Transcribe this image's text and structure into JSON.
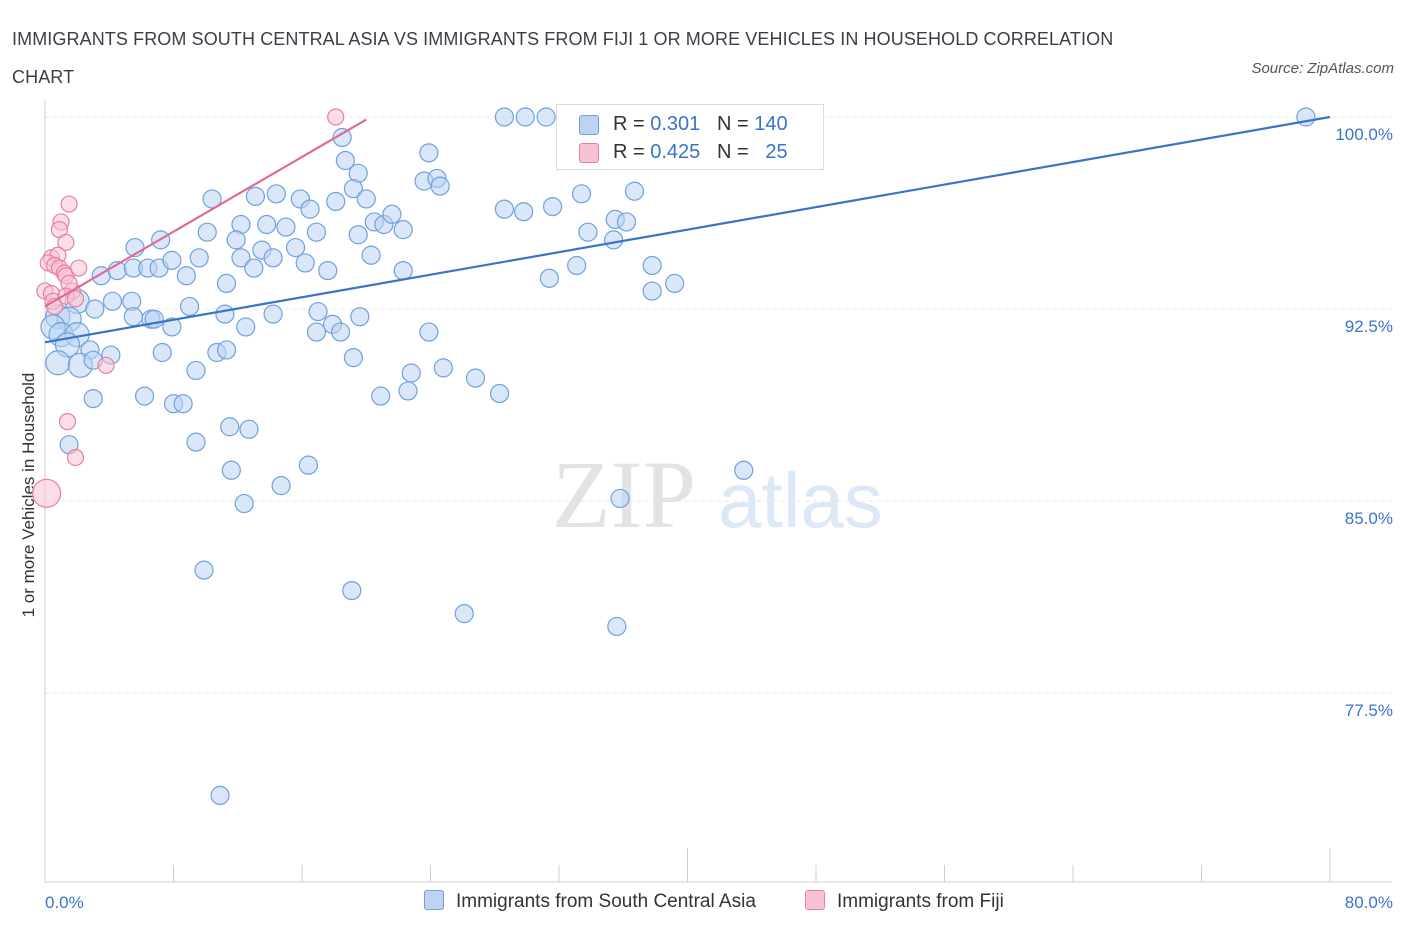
{
  "title": "IMMIGRANTS FROM SOUTH CENTRAL ASIA VS IMMIGRANTS FROM FIJI 1 OR MORE VEHICLES IN HOUSEHOLD CORRELATION CHART",
  "source": "Source: ZipAtlas.com",
  "watermark": {
    "zip": "ZIP",
    "atlas": "atlas"
  },
  "legend": {
    "r_label": "R =",
    "n_label": "N =",
    "series": [
      {
        "name": "Immigrants from South Central Asia",
        "r": "0.301",
        "n": "140",
        "color": "#6fa0e0",
        "fill": "#bcd3f3"
      },
      {
        "name": "Immigrants from Fiji",
        "r": "0.425",
        "n": "25",
        "color": "#e87fa1",
        "fill": "#f7c3d3"
      }
    ]
  },
  "chart_data": {
    "type": "scatter",
    "title": "IMMIGRANTS FROM SOUTH CENTRAL ASIA VS IMMIGRANTS FROM FIJI 1 OR MORE VEHICLES IN HOUSEHOLD CORRELATION CHART",
    "xlabel": "",
    "ylabel": "1 or more Vehicles in Household",
    "xlim": [
      0,
      80
    ],
    "ylim": [
      70,
      100.5
    ],
    "x_tick_labels": [
      "0.0%",
      "80.0%"
    ],
    "y_ticks": [
      77.5,
      85.0,
      92.5,
      100.0
    ],
    "y_tick_labels": [
      "77.5%",
      "85.0%",
      "92.5%",
      "100.0%"
    ],
    "grid": true,
    "series": [
      {
        "name": "Immigrants from South Central Asia",
        "color": "#3a74c9",
        "trend": {
          "x": [
            0,
            80
          ],
          "y": [
            91.2,
            100.0
          ]
        },
        "points": [
          [
            28.6,
            100
          ],
          [
            29.9,
            100
          ],
          [
            31.2,
            100
          ],
          [
            32.6,
            99.9
          ],
          [
            36.5,
            99.9
          ],
          [
            38.0,
            100
          ],
          [
            78.5,
            100
          ],
          [
            18.5,
            99.2
          ],
          [
            18.7,
            98.3
          ],
          [
            19.5,
            97.8
          ],
          [
            19.2,
            97.2
          ],
          [
            20.0,
            96.8
          ],
          [
            23.6,
            97.5
          ],
          [
            24.4,
            97.6
          ],
          [
            23.9,
            98.6
          ],
          [
            24.6,
            97.3
          ],
          [
            31.6,
            96.5
          ],
          [
            28.6,
            96.4
          ],
          [
            29.8,
            96.3
          ],
          [
            33.4,
            97.0
          ],
          [
            35.5,
            96.0
          ],
          [
            36.7,
            97.1
          ],
          [
            10.4,
            96.8
          ],
          [
            13.1,
            96.9
          ],
          [
            14.4,
            97.0
          ],
          [
            15.9,
            96.8
          ],
          [
            16.5,
            96.4
          ],
          [
            18.1,
            96.7
          ],
          [
            12.2,
            95.8
          ],
          [
            13.8,
            95.8
          ],
          [
            15.0,
            95.7
          ],
          [
            16.9,
            95.5
          ],
          [
            19.5,
            95.4
          ],
          [
            20.5,
            95.9
          ],
          [
            21.1,
            95.8
          ],
          [
            21.6,
            96.2
          ],
          [
            22.3,
            95.6
          ],
          [
            33.8,
            95.5
          ],
          [
            35.4,
            95.2
          ],
          [
            36.2,
            95.9
          ],
          [
            5.6,
            94.9
          ],
          [
            7.2,
            95.2
          ],
          [
            10.1,
            95.5
          ],
          [
            11.9,
            95.2
          ],
          [
            13.5,
            94.8
          ],
          [
            14.2,
            94.5
          ],
          [
            15.6,
            94.9
          ],
          [
            16.2,
            94.3
          ],
          [
            20.3,
            94.6
          ],
          [
            17.6,
            94.0
          ],
          [
            3.5,
            93.8
          ],
          [
            4.5,
            94.0
          ],
          [
            5.5,
            94.1
          ],
          [
            6.4,
            94.1
          ],
          [
            7.1,
            94.1
          ],
          [
            7.9,
            94.4
          ],
          [
            8.8,
            93.8
          ],
          [
            9.6,
            94.5
          ],
          [
            11.3,
            93.5
          ],
          [
            12.2,
            94.5
          ],
          [
            13.0,
            94.1
          ],
          [
            22.3,
            94.0
          ],
          [
            33.1,
            94.2
          ],
          [
            31.4,
            93.7
          ],
          [
            37.8,
            94.2
          ],
          [
            37.8,
            93.2
          ],
          [
            39.2,
            93.5
          ],
          [
            2.0,
            92.8
          ],
          [
            4.2,
            92.8
          ],
          [
            5.4,
            92.8
          ],
          [
            3.1,
            92.5
          ],
          [
            5.5,
            92.2
          ],
          [
            6.6,
            92.1
          ],
          [
            9.0,
            92.6
          ],
          [
            11.2,
            92.3
          ],
          [
            14.2,
            92.3
          ],
          [
            19.6,
            92.2
          ],
          [
            17.0,
            92.4
          ],
          [
            0.8,
            92.2
          ],
          [
            1.5,
            92.1
          ],
          [
            0.5,
            91.8
          ],
          [
            1.0,
            91.5
          ],
          [
            2.0,
            91.5
          ],
          [
            6.8,
            92.1
          ],
          [
            7.9,
            91.8
          ],
          [
            12.5,
            91.8
          ],
          [
            16.9,
            91.6
          ],
          [
            17.9,
            91.9
          ],
          [
            18.4,
            91.6
          ],
          [
            23.9,
            91.6
          ],
          [
            1.4,
            91.1
          ],
          [
            2.8,
            90.9
          ],
          [
            4.1,
            90.7
          ],
          [
            7.3,
            90.8
          ],
          [
            10.7,
            90.8
          ],
          [
            11.3,
            90.9
          ],
          [
            19.2,
            90.6
          ],
          [
            24.8,
            90.2
          ],
          [
            0.8,
            90.4
          ],
          [
            2.2,
            90.3
          ],
          [
            3.0,
            90.5
          ],
          [
            9.4,
            90.1
          ],
          [
            22.8,
            90.0
          ],
          [
            26.8,
            89.8
          ],
          [
            3.0,
            89.0
          ],
          [
            6.2,
            89.1
          ],
          [
            8.0,
            88.8
          ],
          [
            8.6,
            88.8
          ],
          [
            20.9,
            89.1
          ],
          [
            22.6,
            89.3
          ],
          [
            28.3,
            89.2
          ],
          [
            11.5,
            87.9
          ],
          [
            12.7,
            87.8
          ],
          [
            1.5,
            87.2
          ],
          [
            9.4,
            87.3
          ],
          [
            11.6,
            86.2
          ],
          [
            16.4,
            86.4
          ],
          [
            43.5,
            86.2
          ],
          [
            14.7,
            85.6
          ],
          [
            12.4,
            84.9
          ],
          [
            35.8,
            85.1
          ],
          [
            9.9,
            82.3
          ],
          [
            19.1,
            81.5
          ],
          [
            26.1,
            80.6
          ],
          [
            35.6,
            80.1
          ],
          [
            10.9,
            73.5
          ]
        ]
      },
      {
        "name": "Immigrants from Fiji",
        "color": "#e06a93",
        "trend": {
          "x": [
            0,
            20
          ],
          "y": [
            92.6,
            99.9
          ]
        },
        "points": [
          [
            18.1,
            100
          ],
          [
            1.5,
            96.6
          ],
          [
            1.0,
            95.9
          ],
          [
            0.9,
            95.6
          ],
          [
            1.3,
            95.1
          ],
          [
            0.4,
            94.5
          ],
          [
            0.8,
            94.6
          ],
          [
            0.2,
            94.3
          ],
          [
            0.6,
            94.2
          ],
          [
            0.9,
            94.1
          ],
          [
            1.2,
            93.9
          ],
          [
            1.3,
            93.8
          ],
          [
            2.1,
            94.1
          ],
          [
            1.7,
            93.2
          ],
          [
            1.5,
            93.5
          ],
          [
            0.0,
            93.2
          ],
          [
            0.4,
            93.1
          ],
          [
            0.5,
            92.8
          ],
          [
            0.6,
            92.6
          ],
          [
            1.3,
            93.0
          ],
          [
            1.9,
            92.9
          ],
          [
            3.8,
            90.3
          ],
          [
            1.4,
            88.1
          ],
          [
            1.9,
            86.7
          ],
          [
            0.1,
            85.3
          ]
        ]
      }
    ]
  }
}
